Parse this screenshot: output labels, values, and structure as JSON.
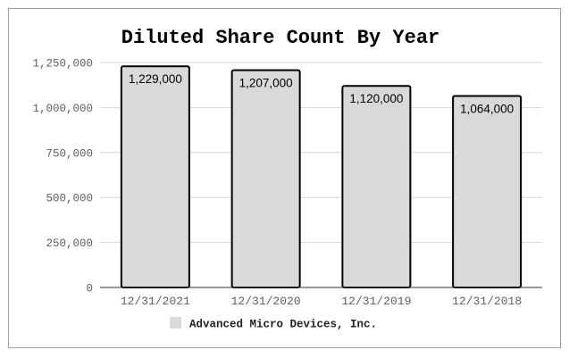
{
  "chart_data": {
    "type": "bar",
    "title": "Diluted Share Count By Year",
    "categories": [
      "12/31/2021",
      "12/31/2020",
      "12/31/2019",
      "12/31/2018"
    ],
    "series": [
      {
        "name": "Advanced Micro Devices, Inc.",
        "values": [
          1229000,
          1207000,
          1120000,
          1064000
        ],
        "labels": [
          "1,229,000",
          "1,207,000",
          "1,120,000",
          "1,064,000"
        ],
        "color": "#d9d9d9",
        "stroke": "#000000"
      }
    ],
    "xlabel": "",
    "ylabel": "",
    "ylim": [
      0,
      1250000
    ],
    "yticks": [
      0,
      250000,
      500000,
      750000,
      1000000,
      1250000
    ],
    "ytick_labels": [
      "0",
      "250,000",
      "500,000",
      "750,000",
      "1,000,000",
      "1,250,000"
    ],
    "grid": true,
    "legend_position": "bottom"
  }
}
